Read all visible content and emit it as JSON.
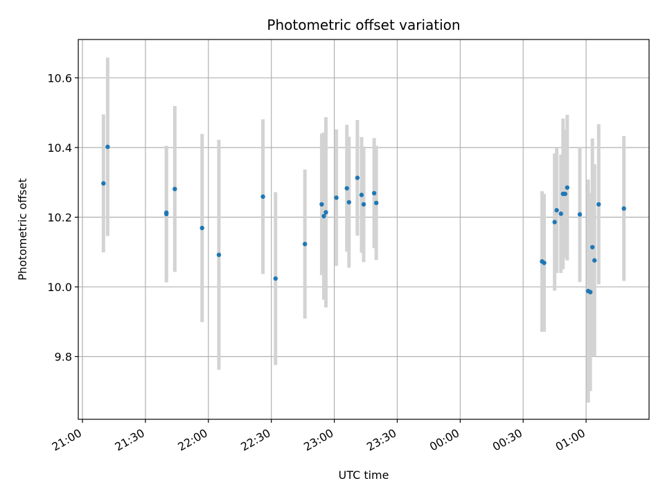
{
  "chart_data": {
    "type": "scatter",
    "title": "Photometric offset variation",
    "xlabel": "UTC time",
    "ylabel": "Photometric offset",
    "x_ticks": [
      "21:00",
      "21:30",
      "22:00",
      "22:30",
      "23:00",
      "23:30",
      "00:00",
      "00:30",
      "01:00"
    ],
    "y_ticks": [
      "9.8",
      "10.0",
      "10.2",
      "10.4",
      "10.6"
    ],
    "xlim": [
      "20:58",
      "01:30"
    ],
    "ylim": [
      9.62,
      10.71
    ],
    "grid": true,
    "colors": {
      "point": "#1f77b4",
      "errorbar": "#d3d3d3",
      "grid": "#b0b0b0"
    },
    "series": [
      {
        "points": [
          {
            "x": "21:10",
            "y": 10.297,
            "err": 0.198
          },
          {
            "x": "21:12",
            "y": 10.402,
            "err": 0.256
          },
          {
            "x": "21:40",
            "y": 10.213,
            "err": 0.19
          },
          {
            "x": "21:40",
            "y": 10.209,
            "err": 0.196
          },
          {
            "x": "21:44",
            "y": 10.281,
            "err": 0.238
          },
          {
            "x": "21:57",
            "y": 10.169,
            "err": 0.27
          },
          {
            "x": "22:05",
            "y": 10.092,
            "err": 0.33
          },
          {
            "x": "22:26",
            "y": 10.259,
            "err": 0.222
          },
          {
            "x": "22:32",
            "y": 10.024,
            "err": 0.248
          },
          {
            "x": "22:46",
            "y": 10.123,
            "err": 0.214
          },
          {
            "x": "22:54",
            "y": 10.237,
            "err": 0.203
          },
          {
            "x": "22:55",
            "y": 10.203,
            "err": 0.24
          },
          {
            "x": "22:56",
            "y": 10.214,
            "err": 0.273
          },
          {
            "x": "23:01",
            "y": 10.256,
            "err": 0.196
          },
          {
            "x": "23:06",
            "y": 10.283,
            "err": 0.182
          },
          {
            "x": "23:07",
            "y": 10.243,
            "err": 0.188
          },
          {
            "x": "23:11",
            "y": 10.313,
            "err": 0.166
          },
          {
            "x": "23:13",
            "y": 10.264,
            "err": 0.166
          },
          {
            "x": "23:14",
            "y": 10.237,
            "err": 0.166
          },
          {
            "x": "23:19",
            "y": 10.269,
            "err": 0.158
          },
          {
            "x": "23:20",
            "y": 10.241,
            "err": 0.164
          },
          {
            "x": "00:39",
            "y": 10.073,
            "err": 0.202
          },
          {
            "x": "00:40",
            "y": 10.069,
            "err": 0.198
          },
          {
            "x": "00:45",
            "y": 10.186,
            "err": 0.197
          },
          {
            "x": "00:46",
            "y": 10.22,
            "err": 0.18
          },
          {
            "x": "00:48",
            "y": 10.21,
            "err": 0.17
          },
          {
            "x": "00:49",
            "y": 10.267,
            "err": 0.216
          },
          {
            "x": "00:50",
            "y": 10.267,
            "err": 0.184
          },
          {
            "x": "00:51",
            "y": 10.285,
            "err": 0.209
          },
          {
            "x": "00:57",
            "y": 10.208,
            "err": 0.194
          },
          {
            "x": "01:01",
            "y": 9.988,
            "err": 0.32
          },
          {
            "x": "01:02",
            "y": 9.985,
            "err": 0.284
          },
          {
            "x": "01:03",
            "y": 10.114,
            "err": 0.312
          },
          {
            "x": "01:04",
            "y": 10.076,
            "err": 0.276
          },
          {
            "x": "01:06",
            "y": 10.237,
            "err": 0.23
          },
          {
            "x": "01:18",
            "y": 10.225,
            "err": 0.208
          }
        ]
      }
    ]
  }
}
